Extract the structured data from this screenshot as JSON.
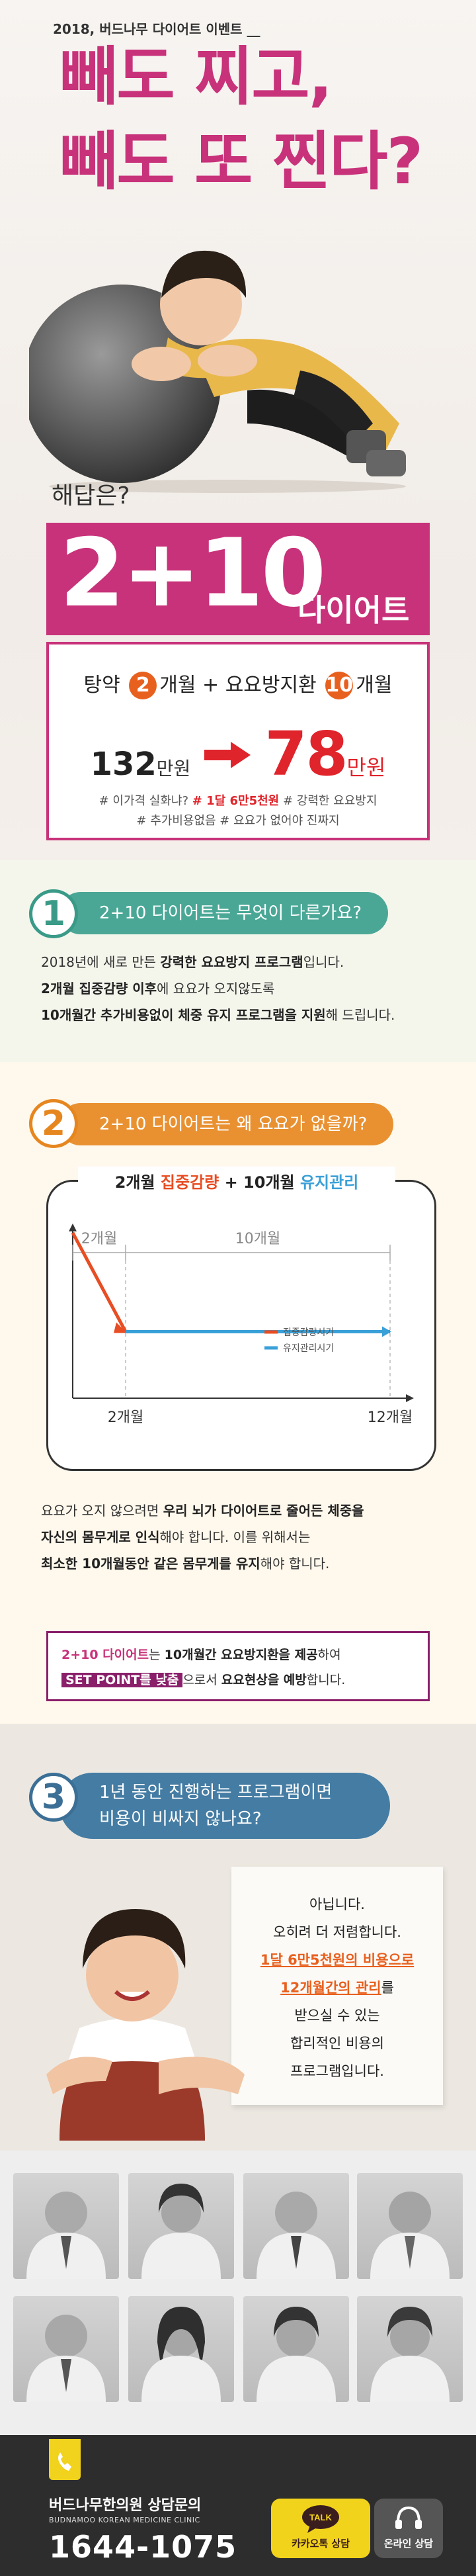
{
  "hero": {
    "kicker": "2018, 버드나무 다이어트 이벤트 __",
    "headline_1": "빼도 찌고,",
    "headline_2": "빼도 또 찐다?",
    "answer_question": "해답은?",
    "brand_number": "2+10",
    "brand_suffix": "다이어트",
    "promo_prefix_1": "탕약",
    "promo_num_1": "2",
    "promo_mid": "개월 + 요요방지환",
    "promo_num_2": "10",
    "promo_suffix": "개월",
    "price_old": "132",
    "price_old_unit": "만원",
    "price_new": "78",
    "price_new_unit": "만원",
    "tags_line1_a": "# 이가격 실화냐?",
    "tags_line1_b": "# 1달 6만5천원",
    "tags_line1_c": "# 강력한 요요방지",
    "tags_line2": "# 추가비용없음   # 요요가 없어야 진짜지"
  },
  "section1": {
    "number": "1",
    "question": "2+10 다이어트는 무엇이 다른가요?",
    "line1_a": "2018년에 새로 만든 ",
    "line1_b": "강력한 요요방지 프로그램",
    "line1_c": "입니다.",
    "line2_a": "2개월 집중감량 이후",
    "line2_b": "에 요요가 오지않도록",
    "line3_a": "10개월간 추가비용없이 체중 유지 프로그램을 지원",
    "line3_b": "해 드립니다."
  },
  "section2": {
    "number": "2",
    "question": "2+10 다이어트는 왜 요요가 없을까?",
    "chart_title_a": "2개월 ",
    "chart_title_b": "집중감량",
    "chart_title_c": " + 10개월 ",
    "chart_title_d": "유지관리",
    "body_1a": "요요가 오지 않으려면 ",
    "body_1b": "우리 뇌가 다이어트로 줄어든 체중을",
    "body_2a": "자신의 몸무게로 인식",
    "body_2b": "해야 합니다. 이를 위해서는",
    "body_3a": "최소한 10개월동안 같은 몸무게를 유지",
    "body_3b": "해야 합니다.",
    "callout_a": "2+10 다이어트",
    "callout_b": "는 ",
    "callout_c": "10개월간 요요방지환을 제공",
    "callout_d": "하여",
    "callout_e": "SET POINT를 낮춤",
    "callout_f": "으로서 ",
    "callout_g": "요요현상을 예방",
    "callout_h": "합니다."
  },
  "chart_data": {
    "type": "line",
    "title": "2개월 집중감량 + 10개월 유지관리",
    "x_ticks": [
      "2개월",
      "12개월"
    ],
    "range_labels": [
      "2개월",
      "10개월"
    ],
    "series": [
      {
        "name": "집중감량시기",
        "color": "#e84d23",
        "x": [
          0,
          2
        ],
        "y": [
          1,
          0.35
        ]
      },
      {
        "name": "유지관리시기",
        "color": "#3aa0d8",
        "x": [
          2,
          12
        ],
        "y": [
          0.35,
          0.35
        ]
      }
    ],
    "legend_position": "middle-right",
    "grid": false
  },
  "section3": {
    "number": "3",
    "question_1": "1년 동안 진행하는 프로그램이면",
    "question_2": "비용이 비싸지 않나요?",
    "paper_1": "아닙니다.",
    "paper_2": "오히려 더 저렴합니다.",
    "paper_3": "1달 6만5천원의 비용으로",
    "paper_4": "12개월간의 관리",
    "paper_4b": "를",
    "paper_5": "받으실 수 있는",
    "paper_6": "합리적인 비용의",
    "paper_7": "프로그램입니다."
  },
  "footer": {
    "clinic_name": "버드나무한의원 상담문의",
    "clinic_en": "BUDNAMOO KOREAN MEDICINE CLINIC",
    "phone": "1644-1075",
    "kakao_badge": "TALK",
    "kakao_label": "카카오톡 상담",
    "online_label": "온라인 상담"
  },
  "colors": {
    "brand_pink": "#c8327a",
    "accent_orange": "#e8601e",
    "price_red": "#e0242b",
    "teal": "#4aa796",
    "orange": "#e99131",
    "blue": "#447ca3",
    "kakao_yellow": "#f2d31b"
  }
}
